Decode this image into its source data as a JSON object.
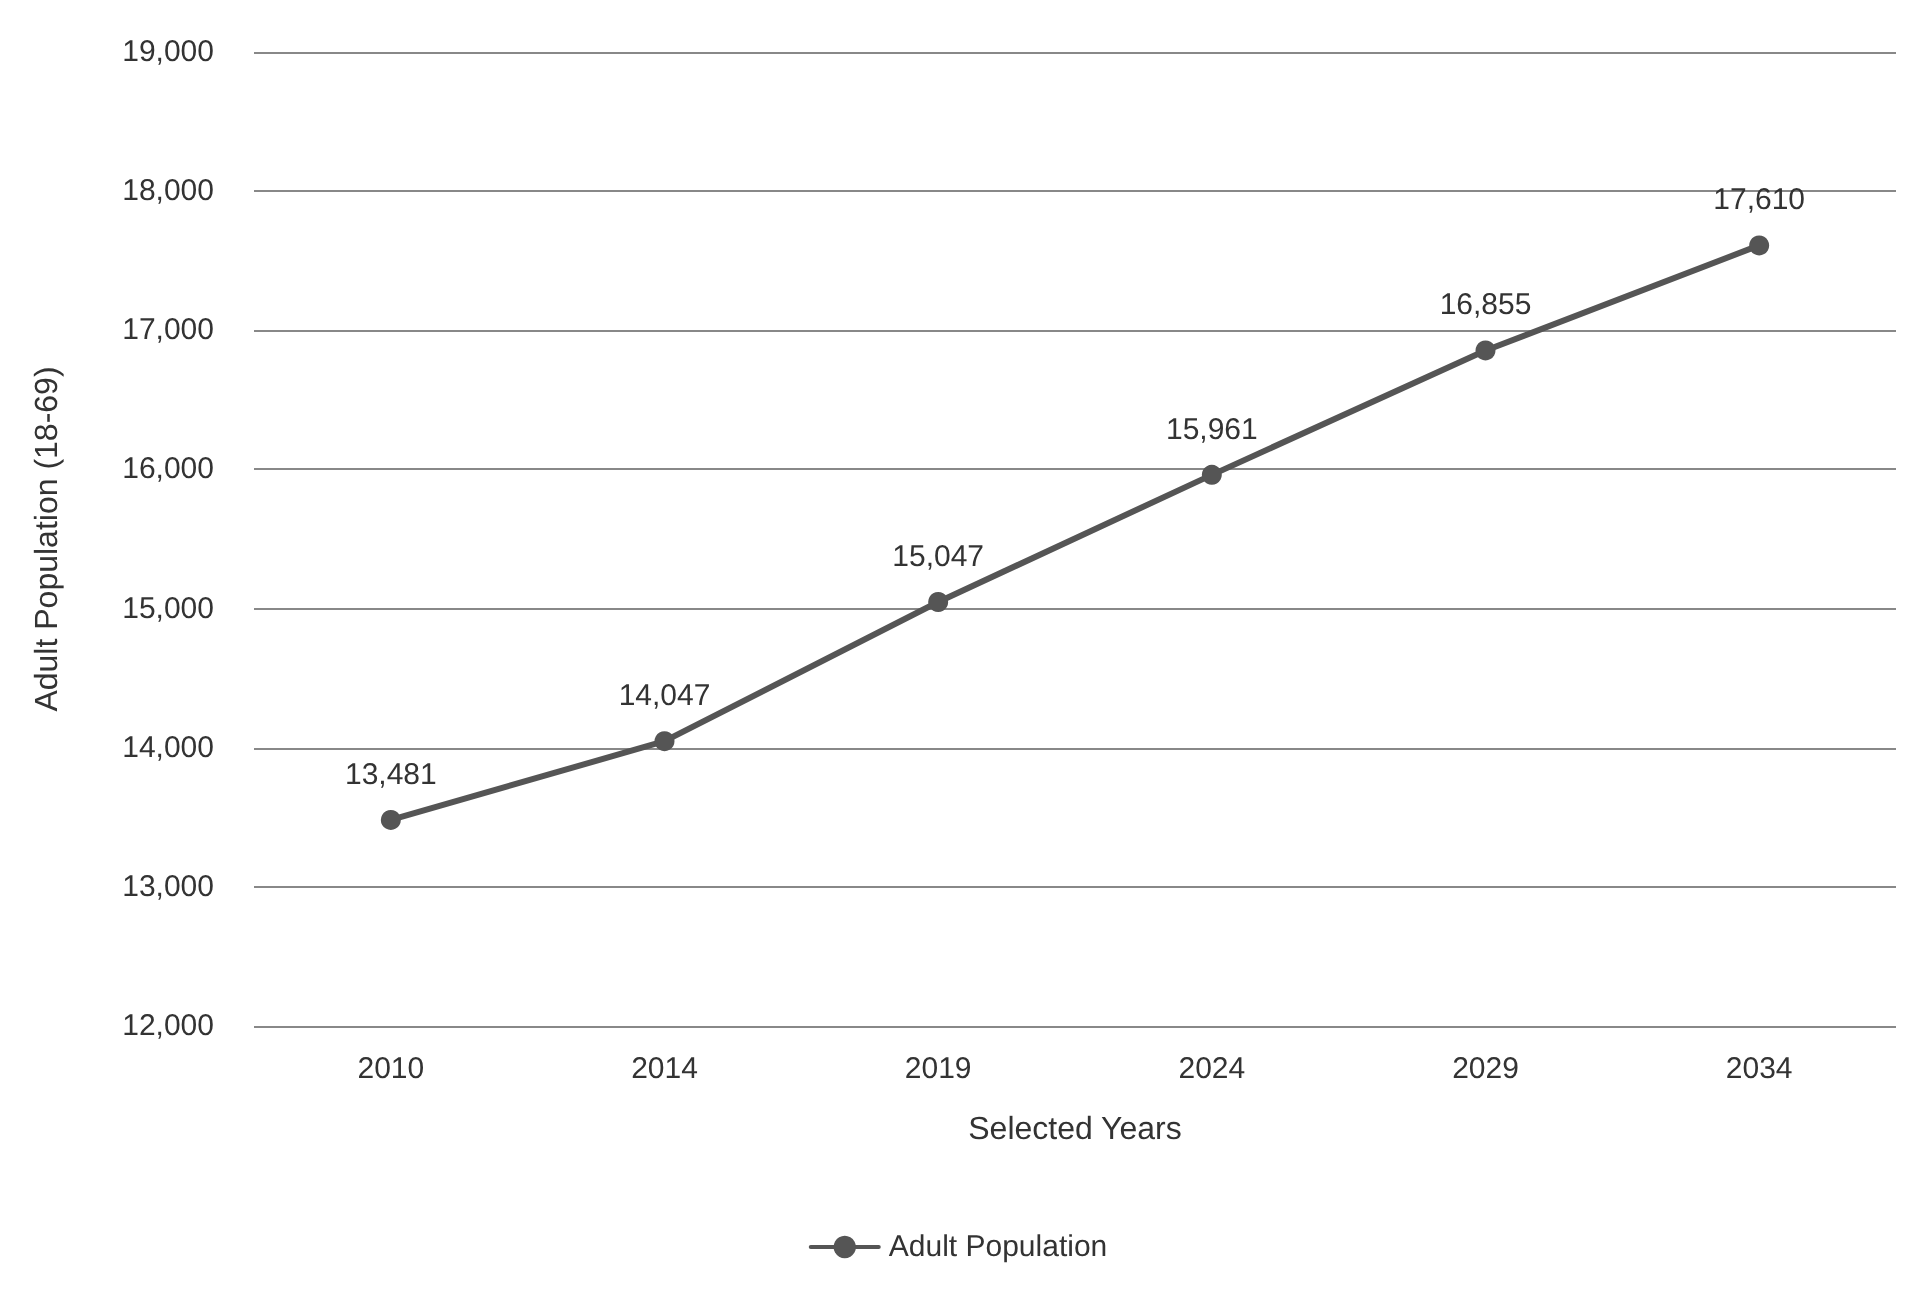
{
  "chart_data": {
    "type": "line",
    "xlabel": "Selected Years",
    "ylabel": "Adult Population (18-69)",
    "categories": [
      "2010",
      "2014",
      "2019",
      "2024",
      "2029",
      "2034"
    ],
    "series": [
      {
        "name": "Adult Population",
        "color": "#555555",
        "values": [
          13481,
          14047,
          15047,
          15961,
          16855,
          17610
        ],
        "value_labels": [
          "13,481",
          "14,047",
          "15,047",
          "15,961",
          "16,855",
          "17,610"
        ]
      }
    ],
    "ylim": [
      12000,
      19000
    ],
    "yticks": [
      {
        "value": 12000,
        "label": "12,000"
      },
      {
        "value": 13000,
        "label": "13,000"
      },
      {
        "value": 14000,
        "label": "14,000"
      },
      {
        "value": 15000,
        "label": "15,000"
      },
      {
        "value": 16000,
        "label": "16,000"
      },
      {
        "value": 17000,
        "label": "17,000"
      },
      {
        "value": 18000,
        "label": "18,000"
      },
      {
        "value": 19000,
        "label": "19,000"
      }
    ],
    "grid": "y",
    "legend": "bottom",
    "marker": "circle",
    "line_style": "solid"
  }
}
